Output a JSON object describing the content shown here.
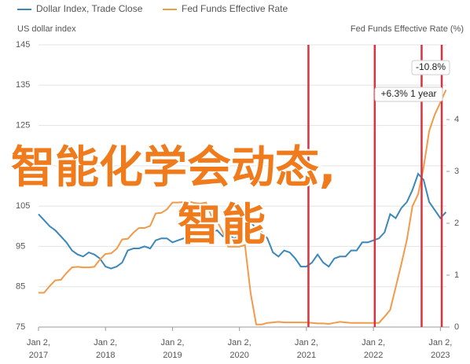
{
  "chart_data": {
    "type": "line",
    "legend": [
      "Dollar Index, Trade Close",
      "Fed Funds Effective Rate"
    ],
    "ylabel": "US dollar index",
    "y2label": "Fed Funds Effective Rate (%)",
    "x": [
      2017,
      2017.083,
      2017.167,
      2017.25,
      2017.333,
      2017.417,
      2017.5,
      2017.583,
      2017.667,
      2017.75,
      2017.833,
      2017.917,
      2018,
      2018.083,
      2018.167,
      2018.25,
      2018.333,
      2018.417,
      2018.5,
      2018.583,
      2018.667,
      2018.75,
      2018.833,
      2018.917,
      2019,
      2019.083,
      2019.167,
      2019.25,
      2019.333,
      2019.417,
      2019.5,
      2019.583,
      2019.667,
      2019.75,
      2019.833,
      2019.917,
      2020,
      2020.083,
      2020.167,
      2020.25,
      2020.333,
      2020.417,
      2020.5,
      2020.583,
      2020.667,
      2020.75,
      2020.833,
      2020.917,
      2021,
      2021.083,
      2021.167,
      2021.25,
      2021.333,
      2021.417,
      2021.5,
      2021.583,
      2021.667,
      2021.75,
      2021.833,
      2021.917,
      2022,
      2022.083,
      2022.167,
      2022.25,
      2022.333,
      2022.417,
      2022.5,
      2022.583,
      2022.667,
      2022.75,
      2022.833,
      2022.917,
      2023,
      2023.083
    ],
    "series": [
      {
        "name": "Dollar Index, Trade Close",
        "color": "#3a87b8",
        "axis": "y",
        "values": [
          103,
          101.5,
          100,
          99,
          97.5,
          96,
          94,
          93,
          92.5,
          93.5,
          93,
          92,
          90,
          89.5,
          90,
          91,
          94,
          94.5,
          94.5,
          95,
          94.5,
          96.5,
          97,
          97,
          96,
          96.5,
          97,
          97.5,
          97.5,
          96.5,
          98,
          98.5,
          99,
          97.5,
          98,
          97,
          97.5,
          98.5,
          101,
          99.5,
          98.5,
          97,
          93.5,
          92.5,
          94,
          93.5,
          92,
          90,
          90,
          91,
          93,
          91,
          90,
          92,
          92.5,
          92.5,
          94,
          94,
          96,
          96,
          96.5,
          97,
          98.5,
          103,
          102,
          104.5,
          106,
          109,
          113,
          111.5,
          106,
          104,
          102,
          103.5
        ]
      },
      {
        "name": "Fed Funds Effective Rate",
        "color": "#f29a4a",
        "axis": "y2",
        "values": [
          0.66,
          0.66,
          0.79,
          0.9,
          0.91,
          1.04,
          1.15,
          1.16,
          1.15,
          1.15,
          1.16,
          1.3,
          1.41,
          1.42,
          1.51,
          1.69,
          1.7,
          1.82,
          1.91,
          1.91,
          1.95,
          2.19,
          2.2,
          2.27,
          2.4,
          2.4,
          2.41,
          2.42,
          2.39,
          2.38,
          2.4,
          2.13,
          2.04,
          1.83,
          1.55,
          1.55,
          1.55,
          1.58,
          0.65,
          0.05,
          0.05,
          0.08,
          0.09,
          0.1,
          0.09,
          0.09,
          0.09,
          0.09,
          0.09,
          0.08,
          0.07,
          0.07,
          0.06,
          0.08,
          0.1,
          0.09,
          0.08,
          0.08,
          0.08,
          0.08,
          0.08,
          0.08,
          0.2,
          0.33,
          0.77,
          1.21,
          1.68,
          2.33,
          2.56,
          3.08,
          3.78,
          4.1,
          4.33,
          4.57
        ]
      }
    ],
    "markers": [
      2021.03,
      2022.02,
      2022.72,
      2023.02
    ],
    "annotations": [
      "-10.8%",
      "+6.3% 1 year"
    ],
    "xlim": [
      2017,
      2023.09
    ],
    "xticks": [
      {
        "value": 2017,
        "label": "Jan 2, 2017"
      },
      {
        "value": 2018,
        "label": "Jan 2, 2018"
      },
      {
        "value": 2019,
        "label": "Jan 2, 2019"
      },
      {
        "value": 2020,
        "label": "Jan 2, 2020"
      },
      {
        "value": 2021,
        "label": "Jan 2, 2021"
      },
      {
        "value": 2022,
        "label": "Jan 2, 2022"
      },
      {
        "value": 2023,
        "label": "Jan 2, 2023"
      }
    ],
    "ylim": [
      75,
      145
    ],
    "yticks": [
      75,
      85,
      95,
      105,
      115,
      125,
      135,
      145
    ],
    "y2lim": [
      0,
      5.44
    ],
    "y2ticks": [
      0,
      1,
      2,
      3,
      4
    ],
    "grid": true
  },
  "overlay_text": [
    "智能化学会动态,",
    "智能"
  ]
}
